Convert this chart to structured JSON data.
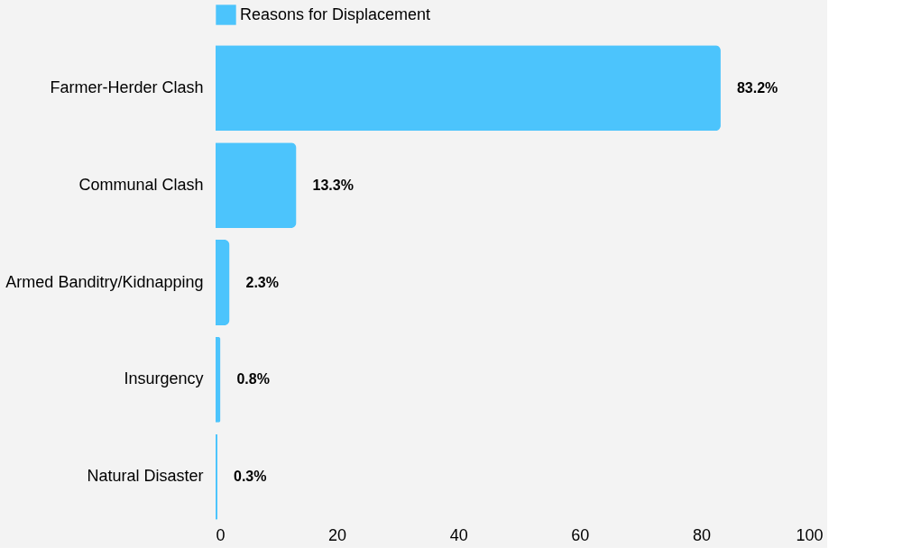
{
  "chart_data": {
    "type": "bar",
    "orientation": "horizontal",
    "categories": [
      "Farmer-Herder Clash",
      "Communal Clash",
      "Armed Banditry/Kidnapping",
      "Insurgency",
      "Natural Disaster"
    ],
    "series": [
      {
        "name": "Reasons for Displacement",
        "color": "#4cc4fc",
        "values": [
          83.2,
          13.3,
          2.3,
          0.8,
          0.3
        ],
        "value_labels": [
          "83.2%",
          "13.3%",
          "2.3%",
          "0.8%",
          "0.3%"
        ]
      }
    ],
    "xlim": [
      0,
      100
    ],
    "xticks": [
      0,
      20,
      40,
      60,
      80,
      100
    ],
    "grid": false,
    "legend": "top"
  }
}
